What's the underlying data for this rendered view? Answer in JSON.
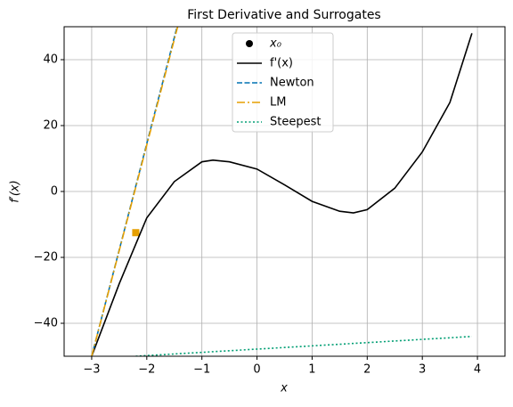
{
  "chart_data": {
    "type": "line",
    "title": "First Derivative and Surrogates",
    "xlabel": "x",
    "ylabel": "f′(x)",
    "xlim": [
      -3.5,
      4.5
    ],
    "ylim": [
      -50,
      50
    ],
    "xticks": [
      {
        "value": -3,
        "label": "−3"
      },
      {
        "value": -2,
        "label": "−2"
      },
      {
        "value": -1,
        "label": "−1"
      },
      0,
      1,
      2,
      3,
      4
    ],
    "yticks": [
      {
        "value": -40,
        "label": "−40"
      },
      {
        "value": -20,
        "label": "−20"
      },
      0,
      20,
      40
    ],
    "grid": true,
    "legend": "upper center",
    "series": [
      {
        "name": "x₀",
        "kind": "scatter",
        "color": "#e69f00",
        "legend_color": "#000000",
        "x": [
          -2.2
        ],
        "values": [
          -12.5
        ]
      },
      {
        "name": "f'(x)",
        "kind": "line",
        "dash": "solid",
        "color": "#000000",
        "x": [
          -3,
          -2.75,
          -2.5,
          -2.2,
          -2,
          -1.5,
          -1,
          -0.8,
          -0.5,
          0,
          0.5,
          1,
          1.5,
          1.75,
          2,
          2.5,
          3,
          3.5,
          3.9
        ],
        "values": [
          -50,
          -39,
          -28,
          -16,
          -8,
          3,
          9,
          9.5,
          9,
          6.8,
          2,
          -3,
          -6,
          -6.5,
          -5.5,
          1,
          12,
          27,
          48
        ]
      },
      {
        "name": "Newton",
        "kind": "line",
        "dash": "dashed",
        "color": "#0072b2",
        "x": [
          -3,
          -1.45
        ],
        "values": [
          -50,
          50
        ]
      },
      {
        "name": "LM",
        "kind": "line",
        "dash": "dashdot",
        "color": "#e69f00",
        "x": [
          -3,
          -1.44
        ],
        "values": [
          -50,
          50
        ]
      },
      {
        "name": "Steepest",
        "kind": "line",
        "dash": "dotted",
        "color": "#009e73",
        "x": [
          -2.2,
          3.9
        ],
        "values": [
          -50,
          -44
        ]
      }
    ]
  }
}
